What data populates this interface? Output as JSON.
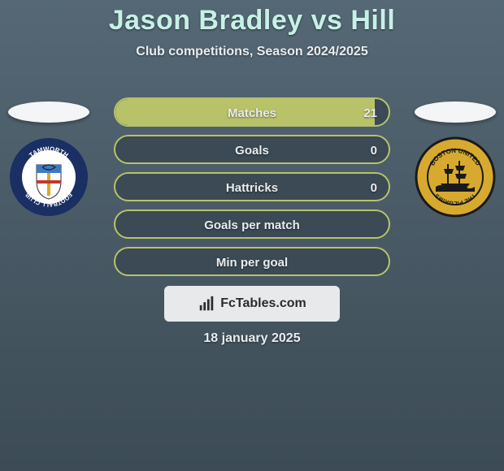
{
  "theme": {
    "background_from": "#556875",
    "background_to": "#3c4b55",
    "title_color": "#c7f0e7",
    "subtitle_color": "#e9ecef",
    "bar_track_color": "#3b4a54",
    "bar_border_color": "#b8c269",
    "bar_fill_color": "#b8c269",
    "bar_label_color": "#e9ecef",
    "bar_value_color": "#e9ecef",
    "watermark_bg": "#e7e9ea",
    "watermark_text": "#2b2b2b",
    "date_color": "#e9ecef",
    "oval_color": "#f4f5f6"
  },
  "title": "Jason Bradley vs Hill",
  "subtitle": "Club competitions, Season 2024/2025",
  "date": "18 january 2025",
  "watermark_label": "FcTables.com",
  "badge_left": {
    "name": "Tamworth Football Club",
    "ring_color": "#1a2f63",
    "ring_text_color": "#ffffff",
    "inner_bg": "#ffffff",
    "shield_top": "#3e7ac4",
    "shield_cross_v": "#d7a92e",
    "shield_cross_h": "#c0392b",
    "knot_color": "#1a2a4a"
  },
  "badge_right": {
    "name": "Boston United — The Pilgrims",
    "ring_color": "#d7a92e",
    "ring_text_color": "#1a1a1a",
    "inner_bg": "#d7a92e",
    "ship_color": "#1a1a1a",
    "sea_color": "#1a1a1a"
  },
  "bars": [
    {
      "label": "Matches",
      "value": "21",
      "fill_pct": 95
    },
    {
      "label": "Goals",
      "value": "0",
      "fill_pct": 0
    },
    {
      "label": "Hattricks",
      "value": "0",
      "fill_pct": 0
    },
    {
      "label": "Goals per match",
      "value": "",
      "fill_pct": 0
    },
    {
      "label": "Min per goal",
      "value": "",
      "fill_pct": 0
    }
  ]
}
